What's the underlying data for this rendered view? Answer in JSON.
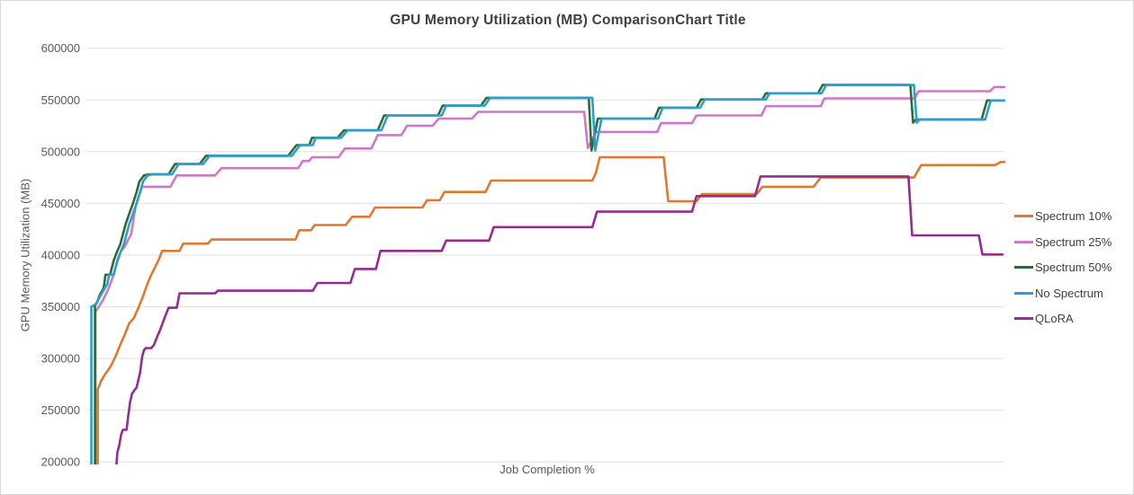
{
  "chart_data": {
    "type": "line",
    "line_style": "step",
    "title": "GPU Memory Utilization (MB) ComparisonChart Title",
    "xlabel": "Job Completion %",
    "ylabel": "GPU Memory Utilization (MB)",
    "xlim": [
      0,
      100
    ],
    "ylim": [
      200000,
      600000
    ],
    "yticks": [
      600000,
      550000,
      500000,
      450000,
      400000,
      350000,
      300000,
      250000,
      200000
    ],
    "x_tick_labels_visible": false,
    "grid": "horizontal",
    "grid_color": "#e1e1e1",
    "background_color": "#ffffff",
    "legend_position": "right",
    "series": [
      {
        "name": "Spectrum 10%",
        "color": "#e0792f",
        "points": [
          [
            0.75,
            193000
          ],
          [
            0.75,
            270000
          ],
          [
            1.1,
            278000
          ],
          [
            1.5,
            284000
          ],
          [
            1.9,
            289000
          ],
          [
            2.2,
            293000
          ],
          [
            2.7,
            302000
          ],
          [
            3.2,
            313000
          ],
          [
            3.7,
            323000
          ],
          [
            4.2,
            334000
          ],
          [
            4.7,
            339000
          ],
          [
            5.2,
            349000
          ],
          [
            5.7,
            360000
          ],
          [
            6.1,
            370000
          ],
          [
            6.5,
            379000
          ],
          [
            7.0,
            388000
          ],
          [
            7.4,
            395000
          ],
          [
            7.8,
            404000
          ],
          [
            9.7,
            404000
          ],
          [
            10.1,
            411000
          ],
          [
            12.8,
            411000
          ],
          [
            13.2,
            415000
          ],
          [
            22.4,
            415000
          ],
          [
            22.8,
            424000
          ],
          [
            24.1,
            424000
          ],
          [
            24.5,
            429000
          ],
          [
            27.9,
            429000
          ],
          [
            28.6,
            437000
          ],
          [
            30.5,
            437000
          ],
          [
            31.1,
            446000
          ],
          [
            36.3,
            446000
          ],
          [
            36.8,
            453000
          ],
          [
            38.2,
            453000
          ],
          [
            38.7,
            461000
          ],
          [
            43.2,
            461000
          ],
          [
            43.8,
            472000
          ],
          [
            54.9,
            472000
          ],
          [
            55.3,
            480000
          ],
          [
            55.7,
            494500
          ],
          [
            62.7,
            494500
          ],
          [
            63.2,
            452000
          ],
          [
            66.3,
            452000
          ],
          [
            66.9,
            459000
          ],
          [
            72.9,
            459000
          ],
          [
            73.5,
            466000
          ],
          [
            79.1,
            466000
          ],
          [
            79.9,
            475000
          ],
          [
            90.1,
            475000
          ],
          [
            90.9,
            487000
          ],
          [
            99.0,
            487000
          ],
          [
            99.6,
            490000
          ],
          [
            100,
            490000
          ]
        ]
      },
      {
        "name": "Spectrum 25%",
        "color": "#cf78c6",
        "points": [
          [
            0.5,
            193000
          ],
          [
            0.5,
            345000
          ],
          [
            0.8,
            349000
          ],
          [
            1.3,
            356000
          ],
          [
            1.8,
            365000
          ],
          [
            2.3,
            376000
          ],
          [
            2.8,
            391000
          ],
          [
            3.3,
            404000
          ],
          [
            3.7,
            408000
          ],
          [
            4.1,
            415000
          ],
          [
            4.4,
            420000
          ],
          [
            4.9,
            447000
          ],
          [
            5.2,
            456000
          ],
          [
            5.6,
            466000
          ],
          [
            8.7,
            466000
          ],
          [
            9.4,
            477000
          ],
          [
            13.6,
            477000
          ],
          [
            14.3,
            484000
          ],
          [
            22.7,
            484000
          ],
          [
            23.2,
            491000
          ],
          [
            23.9,
            491000
          ],
          [
            24.2,
            494500
          ],
          [
            27.1,
            494500
          ],
          [
            27.8,
            503000
          ],
          [
            30.7,
            503000
          ],
          [
            31.4,
            516000
          ],
          [
            34.0,
            516000
          ],
          [
            34.6,
            525000
          ],
          [
            37.4,
            525000
          ],
          [
            38.1,
            532000
          ],
          [
            41.7,
            532000
          ],
          [
            42.4,
            538500
          ],
          [
            54.0,
            538500
          ],
          [
            54.4,
            503500
          ],
          [
            55.3,
            519000
          ],
          [
            62.0,
            519000
          ],
          [
            62.4,
            527500
          ],
          [
            65.8,
            527500
          ],
          [
            66.3,
            535000
          ],
          [
            73.4,
            535000
          ],
          [
            73.9,
            544000
          ],
          [
            79.9,
            544000
          ],
          [
            80.3,
            551500
          ],
          [
            90.2,
            551500
          ],
          [
            90.6,
            558500
          ],
          [
            98.4,
            558500
          ],
          [
            98.9,
            562500
          ],
          [
            100,
            562500
          ]
        ]
      },
      {
        "name": "Spectrum 50%",
        "color": "#2f6b36",
        "points": [
          [
            0.45,
            193000
          ],
          [
            0.45,
            351000
          ],
          [
            0.7,
            355000
          ],
          [
            1.0,
            362000
          ],
          [
            1.4,
            368000
          ],
          [
            1.6,
            381000
          ],
          [
            2.1,
            381000
          ],
          [
            2.5,
            395000
          ],
          [
            2.9,
            404000
          ],
          [
            3.2,
            410000
          ],
          [
            3.8,
            430000
          ],
          [
            4.2,
            440000
          ],
          [
            4.6,
            450000
          ],
          [
            5.0,
            461000
          ],
          [
            5.3,
            471000
          ],
          [
            5.8,
            477000
          ],
          [
            6.3,
            478000
          ],
          [
            8.5,
            478000
          ],
          [
            9.2,
            488000
          ],
          [
            11.9,
            488000
          ],
          [
            12.6,
            496000
          ],
          [
            21.6,
            496000
          ],
          [
            22.5,
            506300
          ],
          [
            23.9,
            506300
          ],
          [
            24.2,
            513400
          ],
          [
            27.0,
            513400
          ],
          [
            27.7,
            520600
          ],
          [
            31.4,
            520600
          ],
          [
            32.1,
            535000
          ],
          [
            38.0,
            535000
          ],
          [
            38.5,
            544500
          ],
          [
            42.7,
            544500
          ],
          [
            43.3,
            552000
          ],
          [
            54.5,
            552000
          ],
          [
            54.8,
            501000
          ],
          [
            55.5,
            532000
          ],
          [
            61.7,
            532000
          ],
          [
            62.2,
            542500
          ],
          [
            66.3,
            542500
          ],
          [
            66.8,
            550500
          ],
          [
            73.5,
            550500
          ],
          [
            73.9,
            556500
          ],
          [
            79.6,
            556500
          ],
          [
            80.1,
            564500
          ],
          [
            89.7,
            564500
          ],
          [
            90.0,
            528000
          ],
          [
            90.3,
            531000
          ],
          [
            97.5,
            531000
          ],
          [
            98.1,
            549500
          ],
          [
            100,
            549500
          ]
        ]
      },
      {
        "name": "No Spectrum",
        "color": "#2c9fcc",
        "points": [
          [
            0.05,
            193000
          ],
          [
            0.05,
            350000
          ],
          [
            0.6,
            353000
          ],
          [
            1.0,
            360000
          ],
          [
            1.4,
            366000
          ],
          [
            1.8,
            372000
          ],
          [
            2.0,
            381000
          ],
          [
            2.5,
            381000
          ],
          [
            2.9,
            395000
          ],
          [
            3.3,
            404000
          ],
          [
            3.6,
            410000
          ],
          [
            4.2,
            430000
          ],
          [
            4.6,
            440000
          ],
          [
            5.0,
            450000
          ],
          [
            5.4,
            461000
          ],
          [
            5.7,
            471000
          ],
          [
            6.2,
            477000
          ],
          [
            6.7,
            478000
          ],
          [
            8.9,
            478000
          ],
          [
            9.6,
            488000
          ],
          [
            12.3,
            488000
          ],
          [
            13.0,
            496000
          ],
          [
            22.0,
            496000
          ],
          [
            22.9,
            506300
          ],
          [
            24.3,
            506300
          ],
          [
            24.6,
            513400
          ],
          [
            27.4,
            513400
          ],
          [
            28.1,
            520600
          ],
          [
            31.8,
            520600
          ],
          [
            32.5,
            535000
          ],
          [
            38.4,
            535000
          ],
          [
            38.9,
            544500
          ],
          [
            43.1,
            544500
          ],
          [
            43.7,
            552000
          ],
          [
            54.9,
            552000
          ],
          [
            55.2,
            501000
          ],
          [
            55.9,
            532000
          ],
          [
            62.1,
            532000
          ],
          [
            62.6,
            542500
          ],
          [
            66.7,
            542500
          ],
          [
            67.2,
            550500
          ],
          [
            73.9,
            550500
          ],
          [
            74.3,
            556500
          ],
          [
            80.0,
            556500
          ],
          [
            80.5,
            564500
          ],
          [
            90.1,
            564500
          ],
          [
            90.4,
            528000
          ],
          [
            90.7,
            531000
          ],
          [
            97.9,
            531000
          ],
          [
            98.5,
            549500
          ],
          [
            100,
            549500
          ]
        ]
      },
      {
        "name": "QLoRA",
        "color": "#942d8f",
        "points": [
          [
            2.76,
            193000
          ],
          [
            2.9,
            209000
          ],
          [
            3.1,
            216000
          ],
          [
            3.3,
            226000
          ],
          [
            3.5,
            231000
          ],
          [
            3.9,
            231000
          ],
          [
            4.1,
            245000
          ],
          [
            4.3,
            258000
          ],
          [
            4.5,
            266000
          ],
          [
            5.0,
            272000
          ],
          [
            5.4,
            287000
          ],
          [
            5.6,
            301000
          ],
          [
            5.8,
            308000
          ],
          [
            6.0,
            310000
          ],
          [
            6.6,
            310000
          ],
          [
            6.9,
            313000
          ],
          [
            7.3,
            322000
          ],
          [
            7.6,
            328000
          ],
          [
            8.1,
            340000
          ],
          [
            8.5,
            349000
          ],
          [
            9.4,
            349000
          ],
          [
            9.7,
            363000
          ],
          [
            13.6,
            363000
          ],
          [
            13.9,
            365500
          ],
          [
            24.3,
            365500
          ],
          [
            24.8,
            373000
          ],
          [
            28.4,
            373000
          ],
          [
            28.9,
            386500
          ],
          [
            31.2,
            386500
          ],
          [
            31.7,
            404000
          ],
          [
            38.4,
            404000
          ],
          [
            38.9,
            414000
          ],
          [
            43.6,
            414000
          ],
          [
            44.1,
            427000
          ],
          [
            54.9,
            427000
          ],
          [
            55.4,
            442000
          ],
          [
            65.8,
            442000
          ],
          [
            66.3,
            457000
          ],
          [
            72.7,
            457000
          ],
          [
            73.3,
            476000
          ],
          [
            89.5,
            476000
          ],
          [
            89.9,
            419000
          ],
          [
            97.2,
            419000
          ],
          [
            97.6,
            400500
          ],
          [
            99.8,
            400500
          ]
        ]
      }
    ]
  },
  "text_colors": {
    "title": "#404040",
    "axis": "#595959",
    "legend": "#3f3f3f"
  }
}
